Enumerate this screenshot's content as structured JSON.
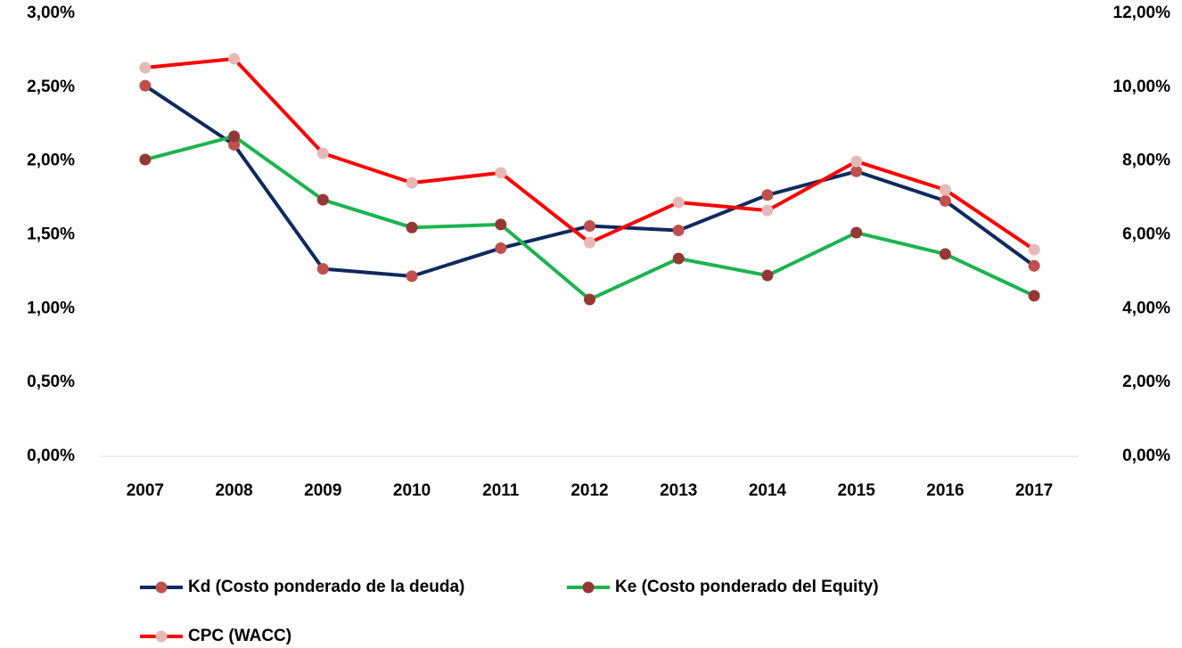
{
  "chart_data": {
    "type": "line",
    "categories": [
      "2007",
      "2008",
      "2009",
      "2010",
      "2011",
      "2012",
      "2013",
      "2014",
      "2015",
      "2016",
      "2017"
    ],
    "ylim": [
      0,
      3
    ],
    "yticks": [
      {
        "value": 0,
        "label": "0,00%"
      },
      {
        "value": 0.5,
        "label": "0,50%"
      },
      {
        "value": 1,
        "label": "1,00%"
      },
      {
        "value": 1.5,
        "label": "1,50%"
      },
      {
        "value": 2,
        "label": "2,00%"
      },
      {
        "value": 2.5,
        "label": "2,50%"
      },
      {
        "value": 3,
        "label": "3,00%"
      }
    ],
    "y2lim": [
      0,
      12
    ],
    "y2ticks": [
      {
        "value": 0,
        "label": "0,00%"
      },
      {
        "value": 2,
        "label": "2,00%"
      },
      {
        "value": 4,
        "label": "4,00%"
      },
      {
        "value": 6,
        "label": "6,00%"
      },
      {
        "value": 8,
        "label": "8,00%"
      },
      {
        "value": 10,
        "label": "10,00%"
      },
      {
        "value": 12,
        "label": "12,00%"
      }
    ],
    "series": [
      {
        "name": "Kd (Costo ponderado de la deuda)",
        "color": "#0e2a5e",
        "marker_color": "#c0504d",
        "axis": "y",
        "values": [
          2.51,
          2.11,
          1.27,
          1.22,
          1.41,
          1.56,
          1.53,
          1.77,
          1.93,
          1.73,
          1.29
        ]
      },
      {
        "name": "Ke (Costo ponderado del Equity)",
        "color": "#1db34f",
        "marker_color": "#953735",
        "axis": "y2",
        "values": [
          8.04,
          8.67,
          6.95,
          6.2,
          6.28,
          4.25,
          5.36,
          4.9,
          6.06,
          5.48,
          4.35
        ]
      },
      {
        "name": "CPC (WACC)",
        "color": "#ff0000",
        "marker_color": "#e6b9b8",
        "axis": "y2",
        "values": [
          10.53,
          10.77,
          8.21,
          7.41,
          7.68,
          5.79,
          6.88,
          6.66,
          7.99,
          7.22,
          5.6
        ]
      }
    ]
  }
}
